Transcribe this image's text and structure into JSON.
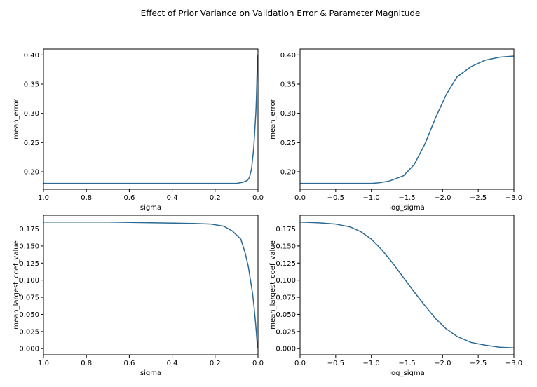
{
  "figure": {
    "title": "Effect of Prior Variance on Validation Error & Parameter Magnitude",
    "line_color": "#2b6a94"
  },
  "chart_data": [
    {
      "type": "line",
      "xlabel": "sigma",
      "ylabel": "mean_error",
      "xlim": [
        1.0,
        0.0
      ],
      "ylim": [
        0.17,
        0.41
      ],
      "xticks": [
        "1.0",
        "0.8",
        "0.6",
        "0.4",
        "0.2",
        "0.0"
      ],
      "xtick_values": [
        1.0,
        0.8,
        0.6,
        0.4,
        0.2,
        0.0
      ],
      "yticks": [
        "0.20",
        "0.25",
        "0.30",
        "0.35",
        "0.40"
      ],
      "ytick_values": [
        0.2,
        0.25,
        0.3,
        0.35,
        0.4
      ],
      "x": [
        1.0,
        0.8,
        0.6,
        0.4,
        0.2,
        0.1,
        0.07,
        0.05,
        0.04,
        0.03,
        0.02,
        0.015,
        0.01,
        0.007,
        0.005,
        0.003,
        0.002,
        0.001
      ],
      "y": [
        0.18,
        0.18,
        0.18,
        0.18,
        0.18,
        0.18,
        0.182,
        0.185,
        0.19,
        0.205,
        0.24,
        0.27,
        0.3,
        0.33,
        0.36,
        0.385,
        0.395,
        0.399
      ]
    },
    {
      "type": "line",
      "xlabel": "log_sigma",
      "ylabel": "mean_error",
      "xlim": [
        0.0,
        -3.0
      ],
      "ylim": [
        0.17,
        0.41
      ],
      "xticks": [
        "0.0",
        "−0.5",
        "−1.0",
        "−1.5",
        "−2.0",
        "−2.5",
        "−3.0"
      ],
      "xtick_values": [
        0.0,
        -0.5,
        -1.0,
        -1.5,
        -2.0,
        -2.5,
        -3.0
      ],
      "yticks": [
        "0.20",
        "0.25",
        "0.30",
        "0.35",
        "0.40"
      ],
      "ytick_values": [
        0.2,
        0.25,
        0.3,
        0.35,
        0.4
      ],
      "x": [
        0.0,
        -0.25,
        -0.5,
        -0.75,
        -1.0,
        -1.1,
        -1.25,
        -1.45,
        -1.6,
        -1.75,
        -1.9,
        -2.05,
        -2.2,
        -2.4,
        -2.6,
        -2.8,
        -3.0
      ],
      "y": [
        0.18,
        0.18,
        0.18,
        0.18,
        0.18,
        0.181,
        0.184,
        0.193,
        0.212,
        0.247,
        0.292,
        0.332,
        0.362,
        0.38,
        0.391,
        0.396,
        0.398
      ]
    },
    {
      "type": "line",
      "xlabel": "sigma",
      "ylabel": "mean_largest_coef_value",
      "xlim": [
        1.0,
        0.0
      ],
      "ylim": [
        -0.009,
        0.195
      ],
      "xticks": [
        "1.0",
        "0.8",
        "0.6",
        "0.4",
        "0.2",
        "0.0"
      ],
      "xtick_values": [
        1.0,
        0.8,
        0.6,
        0.4,
        0.2,
        0.0
      ],
      "yticks": [
        "0.000",
        "0.025",
        "0.050",
        "0.075",
        "0.100",
        "0.125",
        "0.150",
        "0.175"
      ],
      "ytick_values": [
        0.0,
        0.025,
        0.05,
        0.075,
        0.1,
        0.125,
        0.15,
        0.175
      ],
      "x": [
        1.0,
        0.7,
        0.5,
        0.3,
        0.22,
        0.16,
        0.12,
        0.08,
        0.06,
        0.045,
        0.035,
        0.025,
        0.018,
        0.012,
        0.008,
        0.005,
        0.003,
        0.001
      ],
      "y": [
        0.185,
        0.185,
        0.184,
        0.183,
        0.182,
        0.179,
        0.172,
        0.16,
        0.14,
        0.12,
        0.1,
        0.08,
        0.06,
        0.04,
        0.025,
        0.012,
        0.005,
        0.001
      ]
    },
    {
      "type": "line",
      "xlabel": "log_sigma",
      "ylabel": "mean_largest_coef_value",
      "xlim": [
        0.0,
        -3.0
      ],
      "ylim": [
        -0.009,
        0.195
      ],
      "xticks": [
        "0.0",
        "−0.5",
        "−1.0",
        "−1.5",
        "−2.0",
        "−2.5",
        "−3.0"
      ],
      "xtick_values": [
        0.0,
        -0.5,
        -1.0,
        -1.5,
        -2.0,
        -2.5,
        -3.0
      ],
      "yticks": [
        "0.000",
        "0.025",
        "0.050",
        "0.075",
        "0.100",
        "0.125",
        "0.150",
        "0.175"
      ],
      "ytick_values": [
        0.0,
        0.025,
        0.05,
        0.075,
        0.1,
        0.125,
        0.15,
        0.175
      ],
      "x": [
        0.0,
        -0.25,
        -0.5,
        -0.7,
        -0.85,
        -1.0,
        -1.15,
        -1.3,
        -1.45,
        -1.6,
        -1.75,
        -1.9,
        -2.05,
        -2.2,
        -2.4,
        -2.6,
        -2.8,
        -3.0
      ],
      "y": [
        0.185,
        0.184,
        0.182,
        0.178,
        0.171,
        0.16,
        0.144,
        0.125,
        0.104,
        0.083,
        0.063,
        0.044,
        0.029,
        0.018,
        0.009,
        0.005,
        0.002,
        0.001
      ]
    }
  ]
}
